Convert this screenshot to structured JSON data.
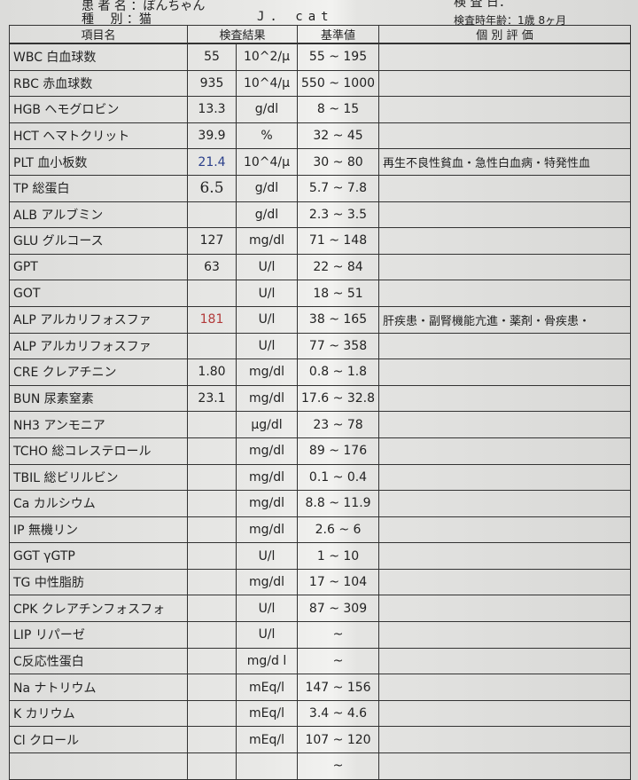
{
  "header": {
    "patient_label": "患 者 名",
    "patient": "：ぽんちゃん",
    "species_label": "種　 別",
    "species": "：猫",
    "species_code": "J. cat",
    "age_label": "検査時年齢：",
    "age": "1歳 8ヶ月",
    "date_label": "検 査 日："
  },
  "columns": [
    "項目名",
    "検査結果",
    "基準値",
    "個 別 評 価"
  ],
  "colors": {
    "high_value": "#b23a3a",
    "low_value": "#2a3f8a"
  },
  "rows": [
    {
      "name": "WBC 白血球数",
      "result": "55",
      "unit": "10^2/μ",
      "low": "55",
      "high": "195",
      "eval": ""
    },
    {
      "name": "RBC 赤血球数",
      "result": "935",
      "unit": "10^4/μ",
      "low": "550",
      "high": "1000",
      "eval": ""
    },
    {
      "name": "HGB ヘモグロビン",
      "result": "13.3",
      "unit": "g/dl",
      "low": "8",
      "high": "15",
      "eval": ""
    },
    {
      "name": "HCT ヘマトクリット",
      "result": "39.9",
      "unit": "%",
      "low": "32",
      "high": "45",
      "eval": ""
    },
    {
      "name": "PLT 血小板数",
      "result": "21.4",
      "unit": "10^4/μ",
      "low": "30",
      "high": "80",
      "eval": "再生不良性貧血・急性白血病・特発性血",
      "flag": "low"
    },
    {
      "name": "TP 総蛋白",
      "result": "6.5",
      "unit": "g/dl",
      "low": "5.7",
      "high": "7.8",
      "eval": "",
      "flag": "hand"
    },
    {
      "name": "ALB アルブミン",
      "result": "",
      "unit": "g/dl",
      "low": "2.3",
      "high": "3.5",
      "eval": ""
    },
    {
      "name": "GLU グルコース",
      "result": "127",
      "unit": "mg/dl",
      "low": "71",
      "high": "148",
      "eval": ""
    },
    {
      "name": "GPT",
      "result": "63",
      "unit": "U/l",
      "low": "22",
      "high": "84",
      "eval": ""
    },
    {
      "name": "GOT",
      "result": "",
      "unit": "U/l",
      "low": "18",
      "high": "51",
      "eval": ""
    },
    {
      "name": "ALP アルカリフォスファ",
      "result": "181",
      "unit": "U/l",
      "low": "38",
      "high": "165",
      "eval": "肝疾患・副腎機能亢進・薬剤・骨疾患・",
      "flag": "high"
    },
    {
      "name": "ALP アルカリフォスファ",
      "result": "",
      "unit": "U/l",
      "low": "77",
      "high": "358",
      "eval": ""
    },
    {
      "name": "CRE クレアチニン",
      "result": "1.80",
      "unit": "mg/dl",
      "low": "0.8",
      "high": "1.8",
      "eval": ""
    },
    {
      "name": "BUN 尿素窒素",
      "result": "23.1",
      "unit": "mg/dl",
      "low": "17.6",
      "high": "32.8",
      "eval": ""
    },
    {
      "name": "NH3 アンモニア",
      "result": "",
      "unit": "μg/dl",
      "low": "23",
      "high": "78",
      "eval": ""
    },
    {
      "name": "TCHO 総コレステロール",
      "result": "",
      "unit": "mg/dl",
      "low": "89",
      "high": "176",
      "eval": ""
    },
    {
      "name": "TBIL 総ビリルビン",
      "result": "",
      "unit": "mg/dl",
      "low": "0.1",
      "high": "0.4",
      "eval": ""
    },
    {
      "name": "Ca カルシウム",
      "result": "",
      "unit": "mg/dl",
      "low": "8.8",
      "high": "11.9",
      "eval": ""
    },
    {
      "name": "IP 無機リン",
      "result": "",
      "unit": "mg/dl",
      "low": "2.6",
      "high": "6",
      "eval": ""
    },
    {
      "name": "GGT γGTP",
      "result": "",
      "unit": "U/l",
      "low": "1",
      "high": "10",
      "eval": ""
    },
    {
      "name": "TG 中性脂肪",
      "result": "",
      "unit": "mg/dl",
      "low": "17",
      "high": "104",
      "eval": ""
    },
    {
      "name": "CPK クレアチンフォスフォ",
      "result": "",
      "unit": "U/l",
      "low": "87",
      "high": "309",
      "eval": ""
    },
    {
      "name": "LIP リパーゼ",
      "result": "",
      "unit": "U/l",
      "low": "",
      "high": "",
      "eval": ""
    },
    {
      "name": "C反応性蛋白",
      "result": "",
      "unit": "mg/d l",
      "low": "",
      "high": "",
      "eval": ""
    },
    {
      "name": "Na ナトリウム",
      "result": "",
      "unit": "mEq/l",
      "low": "147",
      "high": "156",
      "eval": ""
    },
    {
      "name": "K カリウム",
      "result": "",
      "unit": "mEq/l",
      "low": "3.4",
      "high": "4.6",
      "eval": ""
    },
    {
      "name": "Cl クロール",
      "result": "",
      "unit": "mEq/l",
      "low": "107",
      "high": "120",
      "eval": ""
    },
    {
      "name": "",
      "result": "",
      "unit": "",
      "low": "",
      "high": "",
      "eval": ""
    }
  ],
  "range_sep": "~"
}
